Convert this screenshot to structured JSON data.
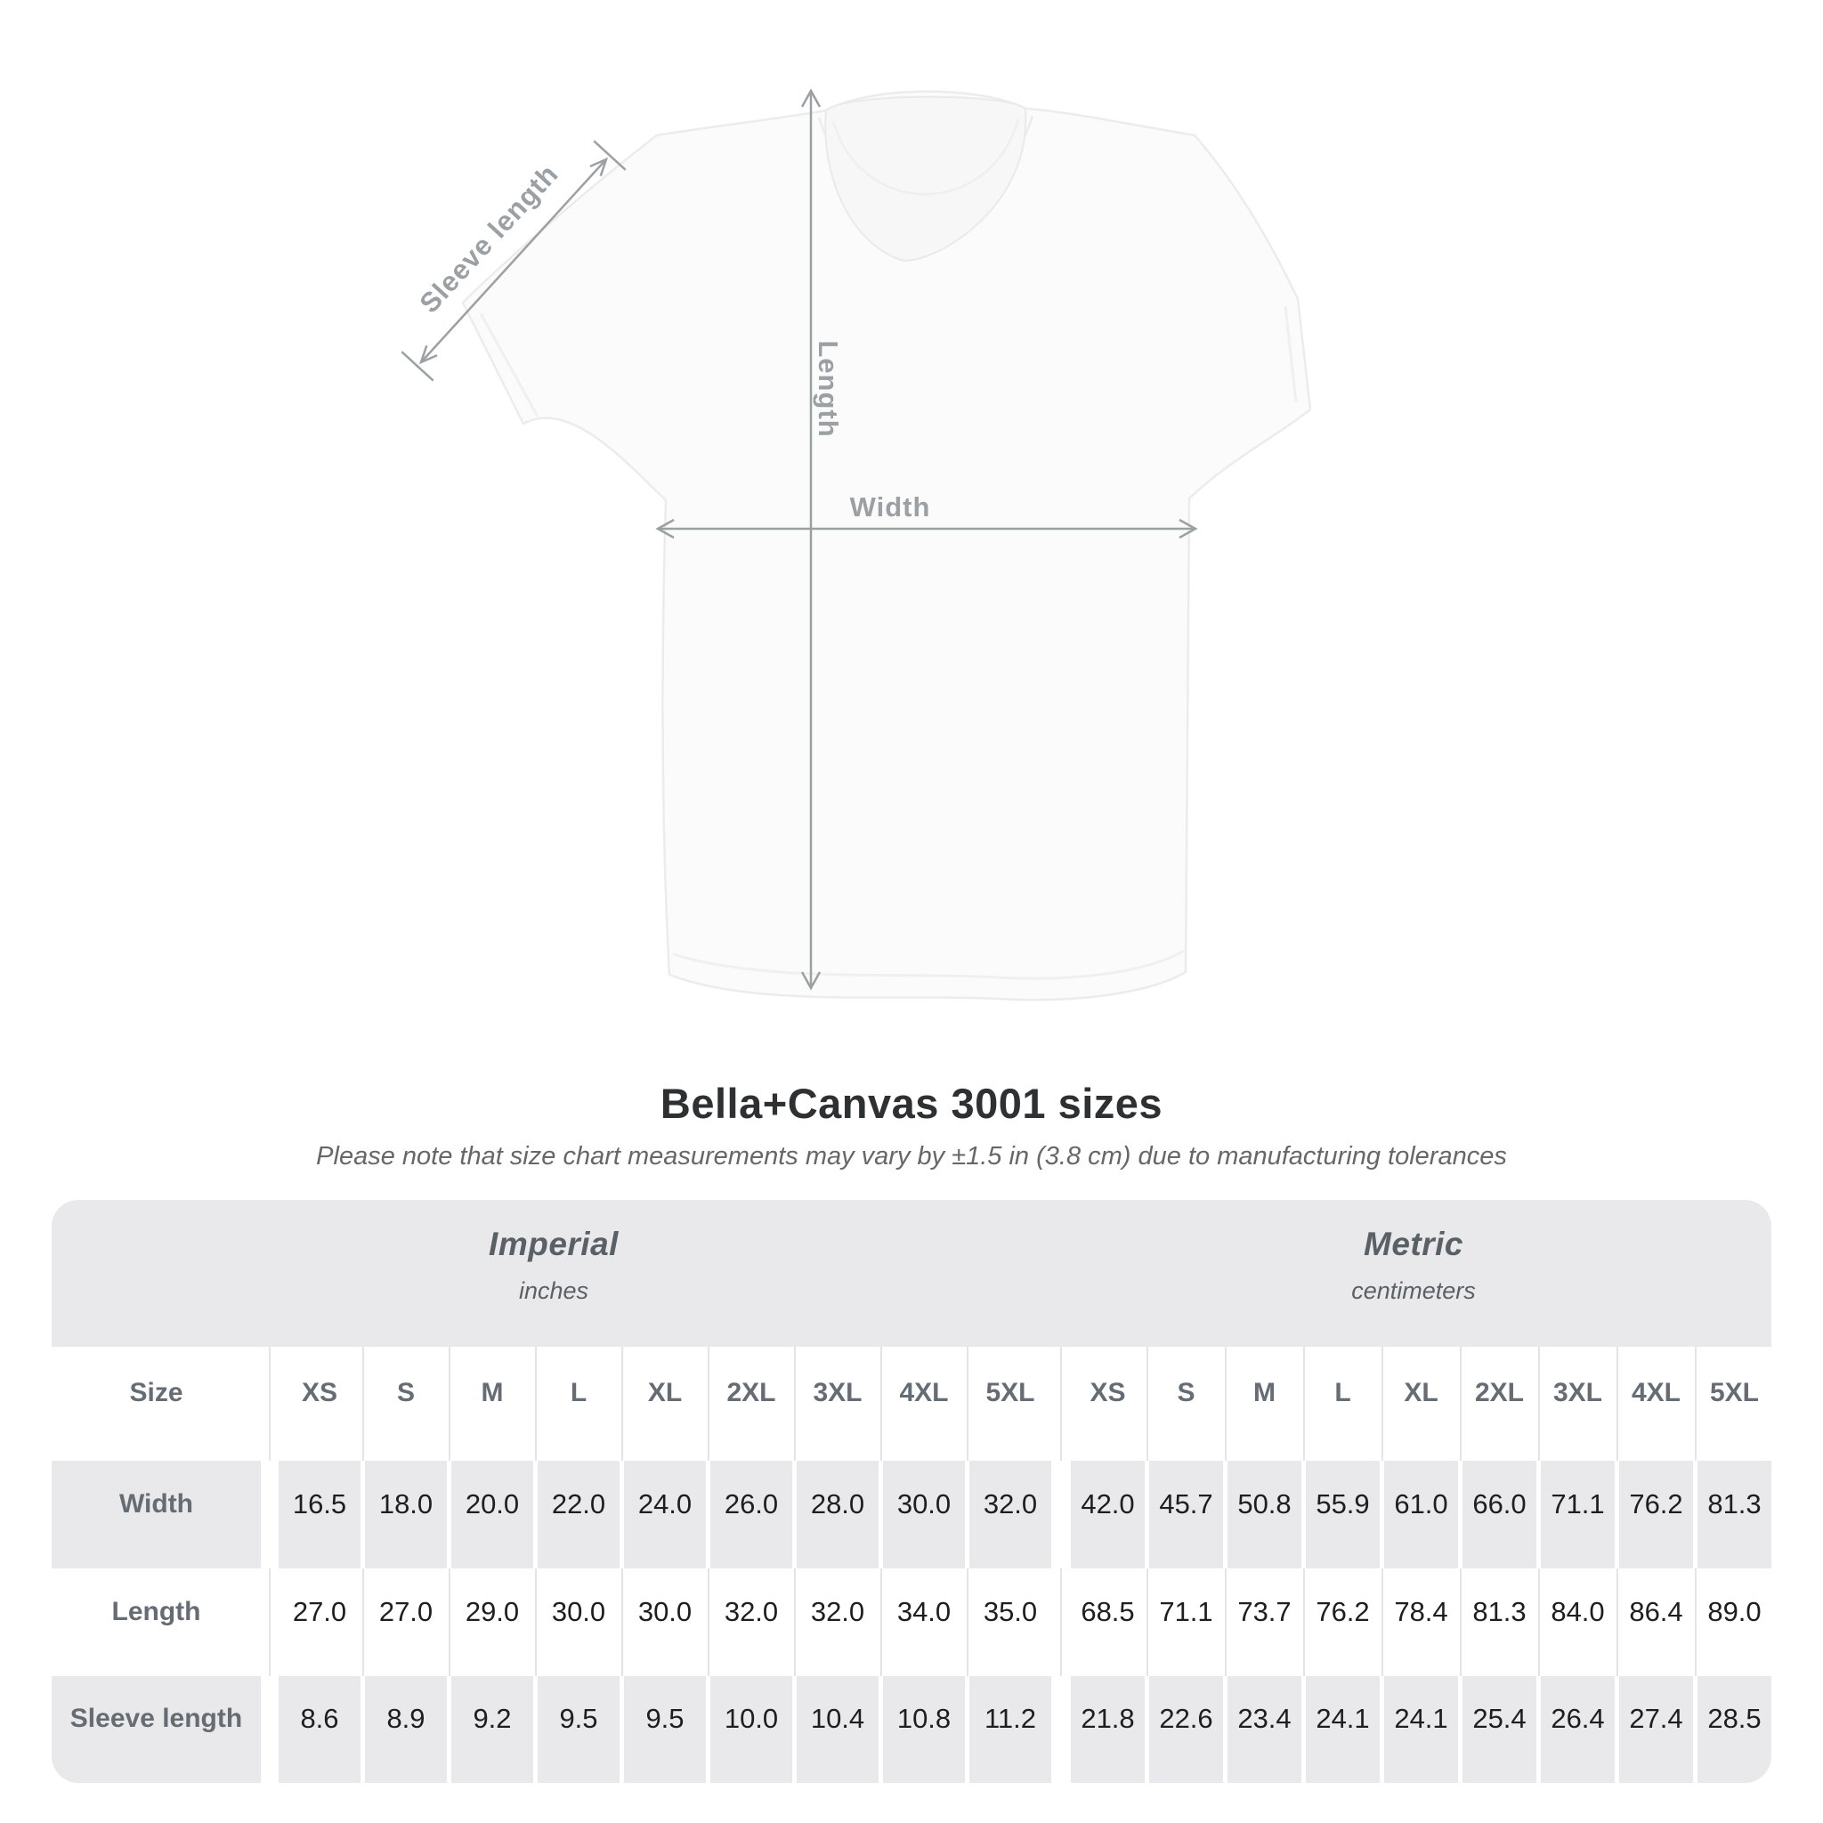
{
  "figure": {
    "labels": {
      "sleeve": "Sleeve length",
      "length": "Length",
      "width": "Width"
    }
  },
  "title": "Bella+Canvas 3001 sizes",
  "subtitle": "Please note that size chart measurements may vary by ±1.5 in (3.8 cm) due to manufacturing tolerances",
  "table": {
    "size_header": "Size",
    "groups": [
      {
        "label": "Imperial",
        "unit": "inches"
      },
      {
        "label": "Metric",
        "unit": "centimeters"
      }
    ],
    "sizes": [
      "XS",
      "S",
      "M",
      "L",
      "XL",
      "2XL",
      "3XL",
      "4XL",
      "5XL"
    ],
    "rows": [
      {
        "label": "Width",
        "imperial": [
          "16.5",
          "18.0",
          "20.0",
          "22.0",
          "24.0",
          "26.0",
          "28.0",
          "30.0",
          "32.0"
        ],
        "metric": [
          "42.0",
          "45.7",
          "50.8",
          "55.9",
          "61.0",
          "66.0",
          "71.1",
          "76.2",
          "81.3"
        ]
      },
      {
        "label": "Length",
        "imperial": [
          "27.0",
          "27.0",
          "29.0",
          "30.0",
          "30.0",
          "32.0",
          "32.0",
          "34.0",
          "35.0"
        ],
        "metric": [
          "68.5",
          "71.1",
          "73.7",
          "76.2",
          "78.4",
          "81.3",
          "84.0",
          "86.4",
          "89.0"
        ]
      },
      {
        "label": "Sleeve length",
        "imperial": [
          "8.6",
          "8.9",
          "9.2",
          "9.5",
          "9.5",
          "10.0",
          "10.4",
          "10.8",
          "11.2"
        ],
        "metric": [
          "21.8",
          "22.6",
          "23.4",
          "24.1",
          "24.1",
          "25.4",
          "26.4",
          "27.4",
          "28.5"
        ]
      }
    ]
  },
  "chart_data": {
    "type": "table",
    "title": "Bella+Canvas 3001 sizes",
    "column_groups": [
      "Imperial (inches)",
      "Metric (centimeters)"
    ],
    "columns": [
      "XS",
      "S",
      "M",
      "L",
      "XL",
      "2XL",
      "3XL",
      "4XL",
      "5XL"
    ],
    "rows": [
      {
        "label": "Width",
        "imperial": [
          16.5,
          18.0,
          20.0,
          22.0,
          24.0,
          26.0,
          28.0,
          30.0,
          32.0
        ],
        "metric": [
          42.0,
          45.7,
          50.8,
          55.9,
          61.0,
          66.0,
          71.1,
          76.2,
          81.3
        ]
      },
      {
        "label": "Length",
        "imperial": [
          27.0,
          27.0,
          29.0,
          30.0,
          30.0,
          32.0,
          32.0,
          34.0,
          35.0
        ],
        "metric": [
          68.5,
          71.1,
          73.7,
          76.2,
          78.4,
          81.3,
          84.0,
          86.4,
          89.0
        ]
      },
      {
        "label": "Sleeve length",
        "imperial": [
          8.6,
          8.9,
          9.2,
          9.5,
          9.5,
          10.0,
          10.4,
          10.8,
          11.2
        ],
        "metric": [
          21.8,
          22.6,
          23.4,
          24.1,
          24.1,
          25.4,
          26.4,
          27.4,
          28.5
        ]
      }
    ]
  }
}
